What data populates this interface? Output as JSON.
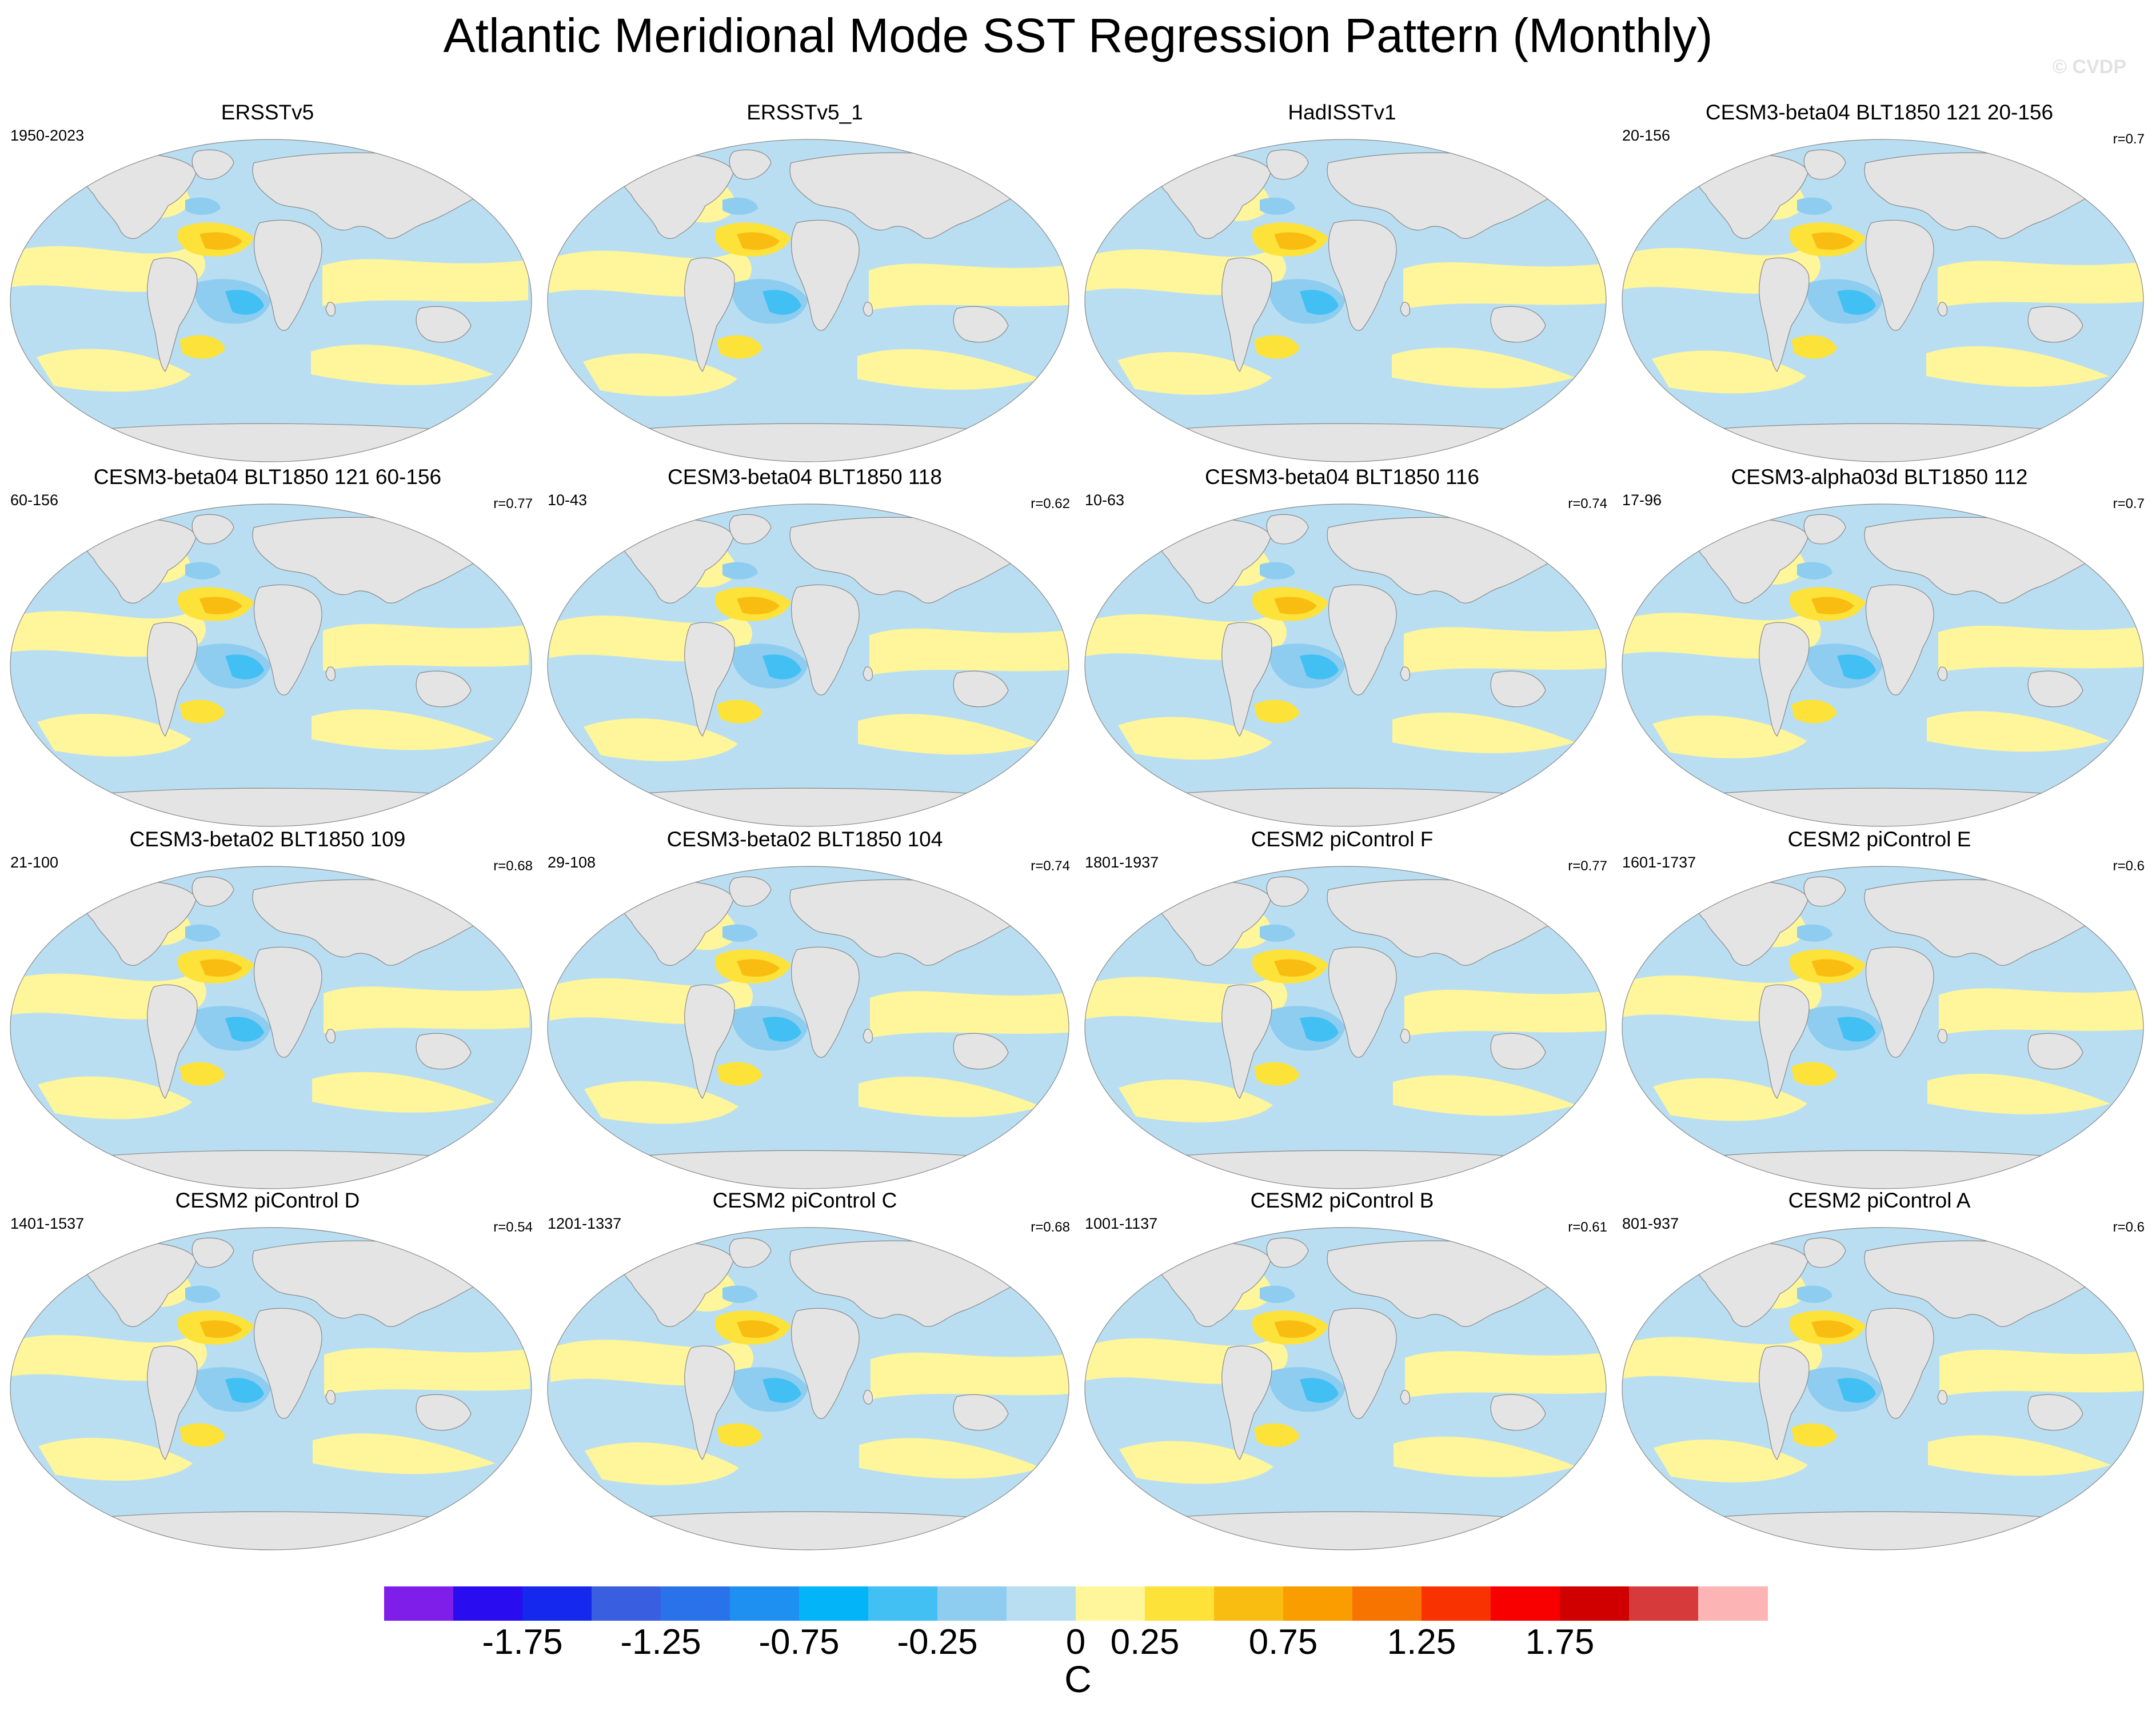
{
  "figure": {
    "title": "Atlantic Meridional Mode SST Regression Pattern (Monthly)",
    "watermark": "© CVDP",
    "units": "C"
  },
  "colors": {
    "land": "#e4e4e4",
    "ocean_neg_weak": "#b9def2",
    "ocean_pos_weak": "#fff59a",
    "ocean_pos_mid": "#fde23a",
    "ocean_pos_strong": "#f9bd12",
    "ocean_neg_mid": "#8ecdf0",
    "ocean_neg_strong": "#42c0f4",
    "coastline": "#888888"
  },
  "panels": [
    {
      "title": "ERSSTv5",
      "left_label": "1950-2023",
      "right_label": ""
    },
    {
      "title": "ERSSTv5_1",
      "left_label": "",
      "right_label": ""
    },
    {
      "title": "HadISSTv1",
      "left_label": "",
      "right_label": ""
    },
    {
      "title": "CESM3-beta04 BLT1850 121 20-156",
      "left_label": "20-156",
      "right_label": "r=0.7"
    },
    {
      "title": "CESM3-beta04 BLT1850 121 60-156",
      "left_label": "60-156",
      "right_label": "r=0.77"
    },
    {
      "title": "CESM3-beta04 BLT1850 118",
      "left_label": "10-43",
      "right_label": "r=0.62"
    },
    {
      "title": "CESM3-beta04 BLT1850 116",
      "left_label": "10-63",
      "right_label": "r=0.74"
    },
    {
      "title": "CESM3-alpha03d BLT1850 112",
      "left_label": "17-96",
      "right_label": "r=0.7"
    },
    {
      "title": "CESM3-beta02 BLT1850 109",
      "left_label": "21-100",
      "right_label": "r=0.68"
    },
    {
      "title": "CESM3-beta02 BLT1850 104",
      "left_label": "29-108",
      "right_label": "r=0.74"
    },
    {
      "title": "CESM2 piControl F",
      "left_label": "1801-1937",
      "right_label": "r=0.77"
    },
    {
      "title": "CESM2 piControl E",
      "left_label": "1601-1737",
      "right_label": "r=0.6"
    },
    {
      "title": "CESM2 piControl D",
      "left_label": "1401-1537",
      "right_label": "r=0.54"
    },
    {
      "title": "CESM2 piControl C",
      "left_label": "1201-1337",
      "right_label": "r=0.68"
    },
    {
      "title": "CESM2 piControl B",
      "left_label": "1001-1137",
      "right_label": "r=0.61"
    },
    {
      "title": "CESM2 piControl A",
      "left_label": "801-937",
      "right_label": "r=0.6"
    }
  ],
  "colorbar": {
    "colors": [
      "#7f1ee8",
      "#2a0cf0",
      "#1428ee",
      "#3a5ee0",
      "#2a72ea",
      "#1e90f2",
      "#04b4f8",
      "#42c0f4",
      "#8ecdf0",
      "#b9def2",
      "#fff59a",
      "#fde23a",
      "#f9bd12",
      "#f99d00",
      "#f87400",
      "#f83200",
      "#f80000",
      "#d00000",
      "#d63a3a",
      "#fcb4b4"
    ],
    "tick_labels": [
      "-1.75",
      "-1.25",
      "-0.75",
      "-0.25",
      "0",
      "0.25",
      "0.75",
      "1.25",
      "1.75"
    ]
  }
}
